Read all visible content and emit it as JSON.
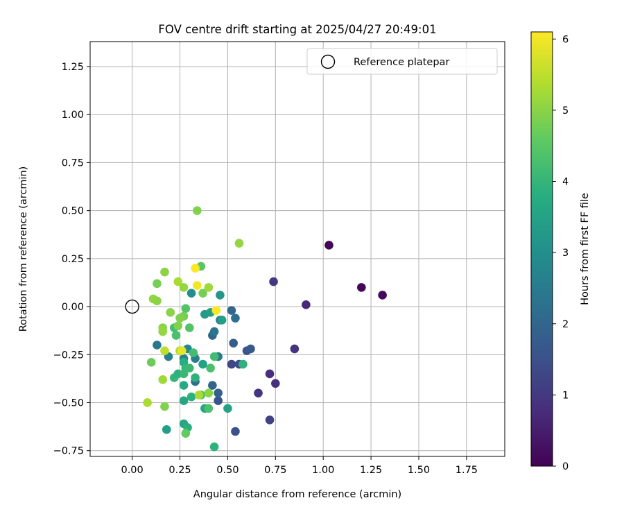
{
  "chart_data": {
    "type": "scatter",
    "title": "FOV centre drift starting at 2025/04/27 20:49:01",
    "xlabel": "Angular distance from reference (arcmin)",
    "ylabel": "Rotation from reference (arcmin)",
    "xlim": [
      -0.22,
      1.95
    ],
    "ylim": [
      -0.78,
      1.38
    ],
    "xticks": [
      "0.00",
      "0.25",
      "0.50",
      "0.75",
      "1.00",
      "1.25",
      "1.50",
      "1.75"
    ],
    "yticks": [
      "−0.75",
      "−0.50",
      "−0.25",
      "0.00",
      "0.25",
      "0.50",
      "0.75",
      "1.00",
      "1.25"
    ],
    "grid": true,
    "legend": {
      "label": "Reference platepar",
      "location": "top-right"
    },
    "reference_point": {
      "x": 0.0,
      "y": 0.0
    },
    "colorbar": {
      "label": "Hours from first FF file",
      "range": [
        0,
        6.1
      ],
      "ticks": [
        "0",
        "1",
        "2",
        "3",
        "4",
        "5",
        "6"
      ],
      "colormap": "viridis"
    },
    "series": [
      {
        "points": [
          {
            "x": 1.03,
            "y": 0.32,
            "c": 0.05
          },
          {
            "x": 1.2,
            "y": 0.1,
            "c": 0.1
          },
          {
            "x": 1.31,
            "y": 0.06,
            "c": 0.15
          },
          {
            "x": 0.91,
            "y": 0.01,
            "c": 0.7
          },
          {
            "x": 0.74,
            "y": 0.13,
            "c": 1.0
          },
          {
            "x": 0.85,
            "y": -0.22,
            "c": 0.9
          },
          {
            "x": 0.72,
            "y": -0.35,
            "c": 0.8
          },
          {
            "x": 0.75,
            "y": -0.4,
            "c": 0.8
          },
          {
            "x": 0.66,
            "y": -0.45,
            "c": 0.9
          },
          {
            "x": 0.72,
            "y": -0.59,
            "c": 1.2
          },
          {
            "x": 0.54,
            "y": -0.65,
            "c": 1.5
          },
          {
            "x": 0.52,
            "y": -0.3,
            "c": 1.3
          },
          {
            "x": 0.56,
            "y": -0.3,
            "c": 1.4
          },
          {
            "x": 0.6,
            "y": -0.23,
            "c": 1.6
          },
          {
            "x": 0.62,
            "y": -0.22,
            "c": 1.7
          },
          {
            "x": 0.53,
            "y": -0.19,
            "c": 1.8
          },
          {
            "x": 0.45,
            "y": -0.49,
            "c": 1.6
          },
          {
            "x": 0.45,
            "y": -0.45,
            "c": 1.9
          },
          {
            "x": 0.42,
            "y": -0.41,
            "c": 2.0
          },
          {
            "x": 0.33,
            "y": -0.39,
            "c": 2.2
          },
          {
            "x": 0.52,
            "y": -0.02,
            "c": 2.0
          },
          {
            "x": 0.54,
            "y": -0.06,
            "c": 2.2
          },
          {
            "x": 0.42,
            "y": -0.15,
            "c": 2.0
          },
          {
            "x": 0.43,
            "y": -0.13,
            "c": 2.3
          },
          {
            "x": 0.46,
            "y": -0.07,
            "c": 2.6
          },
          {
            "x": 0.45,
            "y": -0.26,
            "c": 2.5
          },
          {
            "x": 0.13,
            "y": -0.2,
            "c": 2.4
          },
          {
            "x": 0.19,
            "y": -0.26,
            "c": 2.6
          },
          {
            "x": 0.27,
            "y": -0.27,
            "c": 2.7
          },
          {
            "x": 0.33,
            "y": -0.27,
            "c": 2.6
          },
          {
            "x": 0.29,
            "y": -0.22,
            "c": 2.8
          },
          {
            "x": 0.31,
            "y": 0.07,
            "c": 3.0
          },
          {
            "x": 0.46,
            "y": 0.06,
            "c": 3.2
          },
          {
            "x": 0.38,
            "y": -0.04,
            "c": 3.3
          },
          {
            "x": 0.41,
            "y": -0.03,
            "c": 3.4
          },
          {
            "x": 0.47,
            "y": -0.07,
            "c": 3.4
          },
          {
            "x": 0.37,
            "y": -0.3,
            "c": 3.5
          },
          {
            "x": 0.5,
            "y": -0.53,
            "c": 3.5
          },
          {
            "x": 0.38,
            "y": -0.53,
            "c": 3.6
          },
          {
            "x": 0.18,
            "y": -0.64,
            "c": 3.4
          },
          {
            "x": 0.27,
            "y": -0.61,
            "c": 3.6
          },
          {
            "x": 0.29,
            "y": -0.63,
            "c": 3.8
          },
          {
            "x": 0.43,
            "y": -0.73,
            "c": 3.9
          },
          {
            "x": 0.27,
            "y": -0.41,
            "c": 3.7
          },
          {
            "x": 0.27,
            "y": -0.49,
            "c": 3.6
          },
          {
            "x": 0.31,
            "y": -0.47,
            "c": 3.9
          },
          {
            "x": 0.33,
            "y": -0.37,
            "c": 3.9
          },
          {
            "x": 0.22,
            "y": -0.37,
            "c": 4.0
          },
          {
            "x": 0.24,
            "y": -0.35,
            "c": 3.9
          },
          {
            "x": 0.27,
            "y": -0.29,
            "c": 3.8
          },
          {
            "x": 0.28,
            "y": -0.32,
            "c": 4.0
          },
          {
            "x": 0.3,
            "y": -0.32,
            "c": 4.1
          },
          {
            "x": 0.26,
            "y": -0.23,
            "c": 3.8
          },
          {
            "x": 0.32,
            "y": -0.24,
            "c": 4.2
          },
          {
            "x": 0.41,
            "y": -0.32,
            "c": 4.3
          },
          {
            "x": 0.43,
            "y": -0.26,
            "c": 4.2
          },
          {
            "x": 0.58,
            "y": -0.3,
            "c": 3.9
          },
          {
            "x": 0.27,
            "y": -0.35,
            "c": 4.1
          },
          {
            "x": 0.36,
            "y": -0.46,
            "c": 4.2
          },
          {
            "x": 0.4,
            "y": -0.53,
            "c": 4.3
          },
          {
            "x": 0.28,
            "y": -0.66,
            "c": 4.6
          },
          {
            "x": 0.23,
            "y": -0.15,
            "c": 4.3
          },
          {
            "x": 0.22,
            "y": -0.11,
            "c": 4.2
          },
          {
            "x": 0.28,
            "y": -0.01,
            "c": 4.4
          },
          {
            "x": 0.3,
            "y": -0.11,
            "c": 4.4
          },
          {
            "x": 0.36,
            "y": 0.21,
            "c": 4.5
          },
          {
            "x": 0.37,
            "y": 0.07,
            "c": 4.8
          },
          {
            "x": 0.27,
            "y": -0.05,
            "c": 4.8
          },
          {
            "x": 0.25,
            "y": -0.06,
            "c": 4.9
          },
          {
            "x": 0.24,
            "y": -0.1,
            "c": 4.9
          },
          {
            "x": 0.2,
            "y": -0.03,
            "c": 5.0
          },
          {
            "x": 0.16,
            "y": -0.11,
            "c": 5.0
          },
          {
            "x": 0.16,
            "y": -0.13,
            "c": 5.1
          },
          {
            "x": 0.13,
            "y": 0.12,
            "c": 4.8
          },
          {
            "x": 0.17,
            "y": 0.18,
            "c": 5.0
          },
          {
            "x": 0.24,
            "y": 0.13,
            "c": 5.3
          },
          {
            "x": 0.27,
            "y": 0.1,
            "c": 5.1
          },
          {
            "x": 0.4,
            "y": 0.1,
            "c": 5.2
          },
          {
            "x": 0.11,
            "y": 0.04,
            "c": 5.1
          },
          {
            "x": 0.13,
            "y": 0.03,
            "c": 5.0
          },
          {
            "x": 0.1,
            "y": -0.29,
            "c": 4.7
          },
          {
            "x": 0.17,
            "y": -0.52,
            "c": 4.9
          },
          {
            "x": 0.08,
            "y": -0.5,
            "c": 5.3
          },
          {
            "x": 0.16,
            "y": -0.38,
            "c": 5.2
          },
          {
            "x": 0.17,
            "y": -0.23,
            "c": 5.5
          },
          {
            "x": 0.25,
            "y": -0.23,
            "c": 5.3
          },
          {
            "x": 0.4,
            "y": -0.45,
            "c": 5.0
          },
          {
            "x": 0.35,
            "y": -0.46,
            "c": 5.3
          },
          {
            "x": 0.34,
            "y": 0.5,
            "c": 4.9
          },
          {
            "x": 0.56,
            "y": 0.33,
            "c": 5.1
          },
          {
            "x": 0.34,
            "y": 0.11,
            "c": 6.0
          },
          {
            "x": 0.33,
            "y": 0.2,
            "c": 6.1
          },
          {
            "x": 0.44,
            "y": -0.02,
            "c": 6.1
          },
          {
            "x": 0.26,
            "y": -0.23,
            "c": 5.9
          }
        ]
      }
    ]
  }
}
